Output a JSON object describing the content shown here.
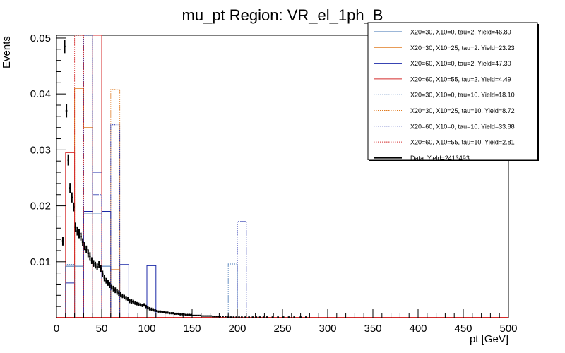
{
  "chart_data": {
    "type": "histogram",
    "title": "mu_pt Region: VR_el_1ph_B",
    "xlabel": "pt [GeV]",
    "ylabel": "Events",
    "xlim": [
      0,
      500
    ],
    "ylim": [
      0,
      0.0505
    ],
    "x_ticks": [
      0,
      50,
      100,
      150,
      200,
      250,
      300,
      350,
      400,
      450,
      500
    ],
    "y_ticks": [
      0.01,
      0.02,
      0.03,
      0.04,
      0.05
    ],
    "y_tick_labels": [
      "0.01",
      "0.02",
      "0.03",
      "0.04",
      "0.05"
    ],
    "bin_width": 10,
    "bin_starts": [
      0,
      10,
      20,
      30,
      40,
      50,
      60,
      70,
      80,
      90,
      100,
      110,
      120,
      130,
      140,
      150,
      160,
      170,
      180,
      190,
      200
    ],
    "series": [
      {
        "name": "X20=30, X10=0, tau=2. Yield=46.80",
        "color": "#3a6fb0",
        "style": "solid",
        "values": [
          0,
          0.0092,
          0.0092,
          0.0187,
          0.0187,
          0.0092,
          0,
          0,
          0,
          0,
          0,
          0,
          0,
          0,
          0,
          0,
          0,
          0,
          0,
          0,
          0
        ]
      },
      {
        "name": "X20=30, X10=25, tau=2. Yield=23.23",
        "color": "#e07b20",
        "style": "solid",
        "values": [
          0,
          0,
          0.041,
          0.034,
          0.026,
          0,
          0.0086,
          0,
          0,
          0,
          0,
          0,
          0,
          0,
          0,
          0,
          0,
          0,
          0,
          0,
          0
        ]
      },
      {
        "name": "X20=60, X10=0, tau=2. Yield=47.30",
        "color": "#1c2aa8",
        "style": "solid",
        "values": [
          0,
          0.0062,
          0.0,
          0.019,
          0.026,
          0.019,
          0.0,
          0.0095,
          0.0,
          0.0,
          0.0093,
          0.0,
          0.0,
          0.0,
          0.0,
          0.0,
          0.0,
          0.0,
          0.0,
          0.0,
          0.0
        ]
      },
      {
        "name": "X20=60, X10=55, tau=2. Yield=4.49",
        "color": "#d42a2a",
        "style": "solid",
        "values": [
          0,
          0.0295,
          0.0,
          0.0,
          0.0505,
          0.0,
          0.0,
          0.0,
          0.0,
          0.0,
          0.0,
          0.0,
          0.0,
          0.0,
          0.0,
          0.0,
          0.0,
          0.0,
          0.0,
          0.0,
          0.0
        ]
      },
      {
        "name": "X20=30, X10=0, tau=10. Yield=18.10",
        "color": "#3a6fb0",
        "style": "dotted",
        "values": [
          0,
          0.0095,
          0.0,
          0.0505,
          0.0,
          0.0,
          0.0,
          0.0,
          0.0,
          0.0,
          0.0,
          0.0,
          0.0,
          0.0,
          0.0,
          0.0,
          0.0,
          0.0,
          0.0,
          0.0096,
          0.0
        ]
      },
      {
        "name": "X20=30, X10=25, tau=10. Yield=8.72",
        "color": "#e07b20",
        "style": "dotted",
        "values": [
          0,
          0.0,
          0.0,
          0.0,
          0.0,
          0.0,
          0.0408,
          0.0,
          0.0,
          0.0,
          0.0,
          0.0,
          0.0,
          0.0,
          0.0,
          0.0,
          0.0,
          0.0,
          0.0,
          0.0,
          0.0
        ]
      },
      {
        "name": "X20=60, X10=0, tau=10. Yield=33.88",
        "color": "#1c2aa8",
        "style": "dotted",
        "values": [
          0,
          0.0,
          0.0,
          0.0505,
          0.022,
          0.0,
          0.0345,
          0.0,
          0.0,
          0.0,
          0.0,
          0.0,
          0.0,
          0.0,
          0.0,
          0.0,
          0.0,
          0.0,
          0.0,
          0.0,
          0.0172
        ]
      },
      {
        "name": "X20=60, X10=55, tau=10. Yield=2.81",
        "color": "#d42a2a",
        "style": "dotted",
        "values": [
          0,
          0.0,
          0.0505,
          0.0,
          0.0,
          0.0,
          0.0,
          0.0,
          0.0,
          0.0,
          0.0,
          0.0,
          0.0,
          0.0,
          0.0,
          0.0,
          0.0,
          0.0,
          0.0,
          0.0,
          0.0
        ]
      }
    ],
    "data_series": {
      "name": "Data. Yield=2413493",
      "color": "#000000",
      "points": [
        [
          7,
          0.0137,
          0.0008
        ],
        [
          9,
          0.0485,
          0.0012
        ],
        [
          11,
          0.037,
          0.0012
        ],
        [
          13,
          0.0282,
          0.001
        ],
        [
          15,
          0.0232,
          0.0009
        ],
        [
          17,
          0.0215,
          0.0009
        ],
        [
          19,
          0.0198,
          0.0008
        ],
        [
          21,
          0.0162,
          0.0008
        ],
        [
          23,
          0.0155,
          0.0008
        ],
        [
          25,
          0.015,
          0.0008
        ],
        [
          27,
          0.0145,
          0.0007
        ],
        [
          29,
          0.0135,
          0.0007
        ],
        [
          31,
          0.0128,
          0.0007
        ],
        [
          33,
          0.0122,
          0.0007
        ],
        [
          35,
          0.0115,
          0.0007
        ],
        [
          37,
          0.011,
          0.0007
        ],
        [
          39,
          0.0102,
          0.0006
        ],
        [
          41,
          0.0097,
          0.0006
        ],
        [
          43,
          0.0094,
          0.0006
        ],
        [
          45,
          0.0091,
          0.0006
        ],
        [
          47,
          0.0095,
          0.0006
        ],
        [
          49,
          0.0088,
          0.0006
        ],
        [
          51,
          0.0078,
          0.0006
        ],
        [
          53,
          0.0071,
          0.0006
        ],
        [
          55,
          0.0066,
          0.0005
        ],
        [
          57,
          0.0062,
          0.0005
        ],
        [
          59,
          0.0058,
          0.0005
        ],
        [
          61,
          0.0055,
          0.0005
        ],
        [
          63,
          0.0052,
          0.0005
        ],
        [
          65,
          0.0049,
          0.0005
        ],
        [
          67,
          0.0046,
          0.0005
        ],
        [
          69,
          0.0044,
          0.0005
        ],
        [
          71,
          0.0042,
          0.0004
        ],
        [
          73,
          0.0039,
          0.0004
        ],
        [
          75,
          0.0037,
          0.0004
        ],
        [
          77,
          0.0035,
          0.0004
        ],
        [
          79,
          0.0033,
          0.0004
        ],
        [
          81,
          0.003,
          0.0004
        ],
        [
          83,
          0.0029,
          0.0004
        ],
        [
          85,
          0.0028,
          0.0004
        ],
        [
          87,
          0.0026,
          0.0003
        ],
        [
          89,
          0.0025,
          0.0003
        ],
        [
          91,
          0.0024,
          0.0003
        ],
        [
          93,
          0.0023,
          0.0003
        ],
        [
          95,
          0.0022,
          0.0003
        ],
        [
          97,
          0.0023,
          0.0003
        ],
        [
          99,
          0.002,
          0.0003
        ],
        [
          101,
          0.0018,
          0.0003
        ],
        [
          103,
          0.0016,
          0.0003
        ],
        [
          105,
          0.0015,
          0.0003
        ],
        [
          107,
          0.0014,
          0.0003
        ],
        [
          109,
          0.0013,
          0.0003
        ],
        [
          111,
          0.0012,
          0.0002
        ],
        [
          113,
          0.0011,
          0.0002
        ],
        [
          115,
          0.0011,
          0.0002
        ],
        [
          117,
          0.001,
          0.0002
        ],
        [
          119,
          0.001,
          0.0002
        ],
        [
          121,
          0.0009,
          0.0002
        ],
        [
          123,
          0.0009,
          0.0002
        ],
        [
          125,
          0.0008,
          0.0002
        ],
        [
          127,
          0.0008,
          0.0002
        ],
        [
          129,
          0.0008,
          0.0002
        ],
        [
          131,
          0.0007,
          0.0002
        ],
        [
          133,
          0.0007,
          0.0002
        ],
        [
          135,
          0.0007,
          0.0002
        ],
        [
          137,
          0.0006,
          0.0002
        ],
        [
          139,
          0.0006,
          0.0002
        ],
        [
          141,
          0.0006,
          0.0002
        ],
        [
          143,
          0.0005,
          0.0002
        ],
        [
          145,
          0.0005,
          0.0002
        ],
        [
          147,
          0.0005,
          0.0002
        ],
        [
          149,
          0.0005,
          0.0002
        ],
        [
          151,
          0.0004,
          0.0001
        ],
        [
          153,
          0.0004,
          0.0001
        ],
        [
          155,
          0.0004,
          0.0001
        ],
        [
          157,
          0.0004,
          0.0001
        ],
        [
          159,
          0.0004,
          0.0001
        ],
        [
          161,
          0.0003,
          0.0001
        ],
        [
          163,
          0.0003,
          0.0001
        ],
        [
          165,
          0.0003,
          0.0001
        ],
        [
          167,
          0.0003,
          0.0001
        ],
        [
          169,
          0.0003,
          0.0001
        ],
        [
          171,
          0.0003,
          0.0001
        ],
        [
          173,
          0.0002,
          0.0001
        ],
        [
          175,
          0.0002,
          0.0001
        ],
        [
          177,
          0.0002,
          0.0001
        ],
        [
          179,
          0.0002,
          0.0001
        ],
        [
          181,
          0.0002,
          0.0001
        ],
        [
          184,
          0.0002,
          0.0001
        ],
        [
          187,
          0.0002,
          0.0001
        ],
        [
          190,
          0.0001,
          0.0001
        ],
        [
          193,
          0.0001,
          0.0001
        ],
        [
          196,
          0.0001,
          0.0001
        ],
        [
          199,
          0.0001,
          0.0001
        ],
        [
          202,
          0.0001,
          0.0001
        ],
        [
          205,
          0.0001,
          0.0001
        ],
        [
          209,
          0.0001,
          0.0001
        ],
        [
          213,
          0.0001,
          0.0001
        ],
        [
          217,
          0.0001,
          0.0001
        ],
        [
          221,
          0.0001,
          0.0001
        ],
        [
          225,
          0.0001,
          0.0001
        ],
        [
          229,
          0.0001,
          0.0001
        ],
        [
          233,
          0.0001,
          0.0001
        ],
        [
          239,
          0.0001,
          0.0001
        ],
        [
          245,
          0.0001,
          0.0001
        ],
        [
          251,
          0.0001,
          0.0001
        ],
        [
          257,
          0.0001,
          0.0001
        ],
        [
          263,
          0.0001,
          0.0001
        ],
        [
          270,
          0.0001,
          0.0001
        ],
        [
          276,
          0.0001,
          0.0001
        ]
      ]
    },
    "legend_position": "top-right"
  }
}
